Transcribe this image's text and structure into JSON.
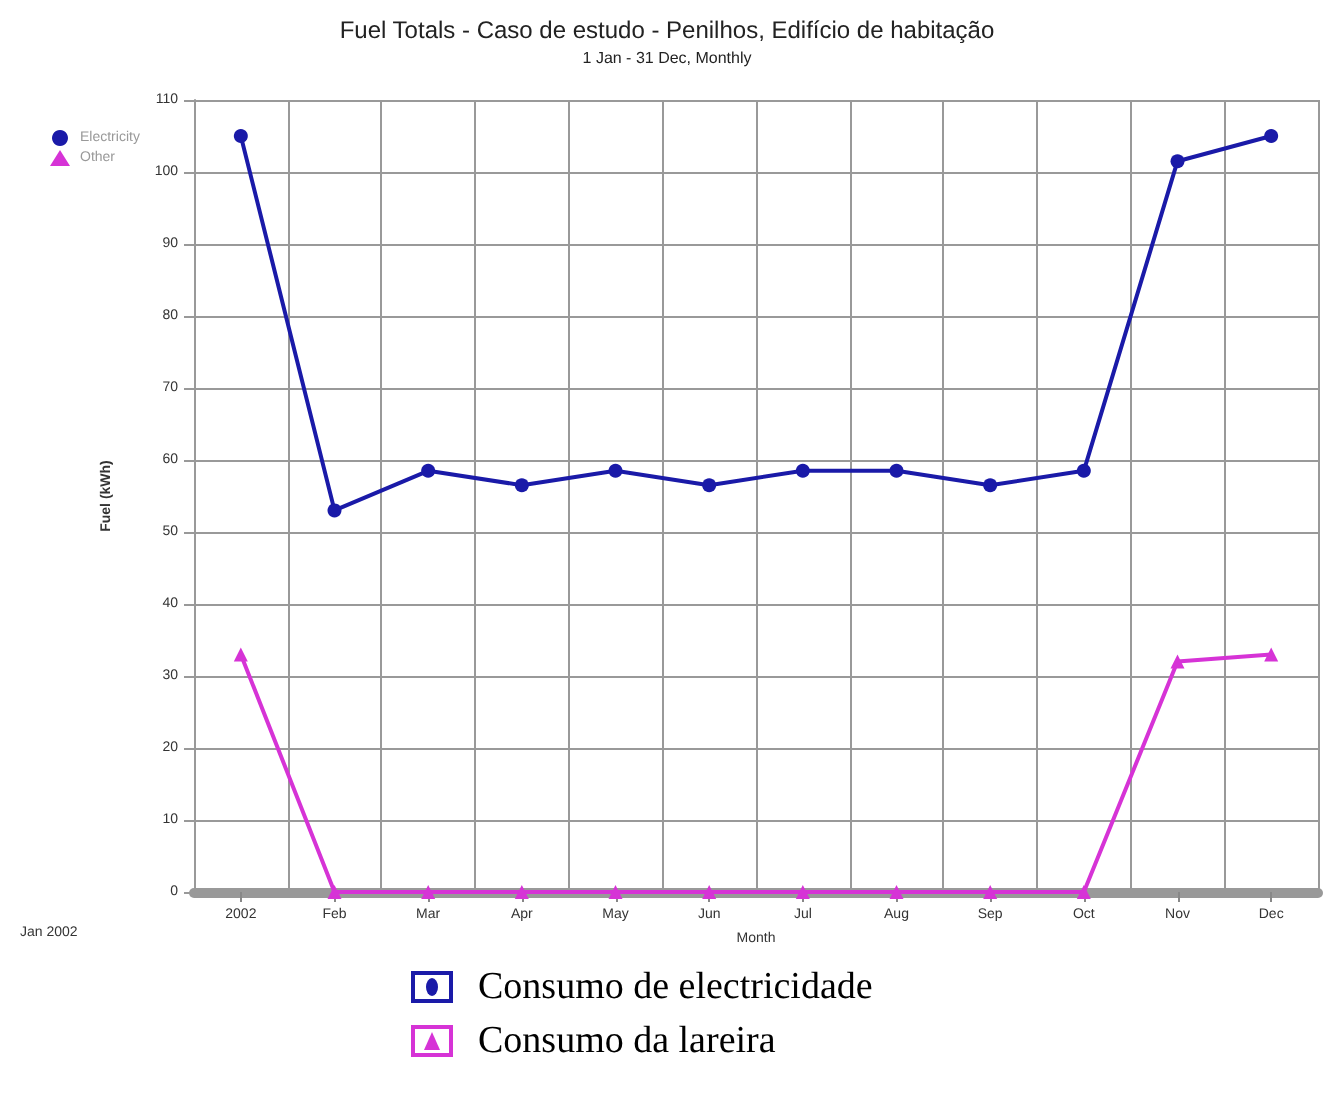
{
  "chart_data": {
    "type": "line",
    "title": "Fuel Totals - Caso de estudo - Penilhos, Edifício de habitação",
    "subtitle": "1 Jan - 31 Dec, Monthly",
    "xlabel": "Month",
    "ylabel": "Fuel (kWh)",
    "categories": [
      "2002",
      "Feb",
      "Mar",
      "Apr",
      "May",
      "Jun",
      "Jul",
      "Aug",
      "Sep",
      "Oct",
      "Nov",
      "Dec"
    ],
    "series": [
      {
        "name": "Electricity",
        "color": "#1a1aa8",
        "marker": "circle",
        "values": [
          105,
          53,
          58.5,
          56.5,
          58.5,
          56.5,
          58.5,
          58.5,
          56.5,
          58.5,
          101.5,
          105
        ]
      },
      {
        "name": "Other",
        "color": "#d633d6",
        "marker": "triangle",
        "values": [
          33,
          0,
          0,
          0,
          0,
          0,
          0,
          0,
          0,
          0,
          32,
          33
        ]
      }
    ],
    "ylim": [
      0,
      110
    ],
    "yticks": [
      0,
      10,
      20,
      30,
      40,
      50,
      60,
      70,
      80,
      90,
      100,
      110
    ],
    "grid": true,
    "legend": "top left",
    "annotations": [
      "Jan 2002",
      "Consumo de electricidade",
      "Consumo da lareira"
    ]
  }
}
